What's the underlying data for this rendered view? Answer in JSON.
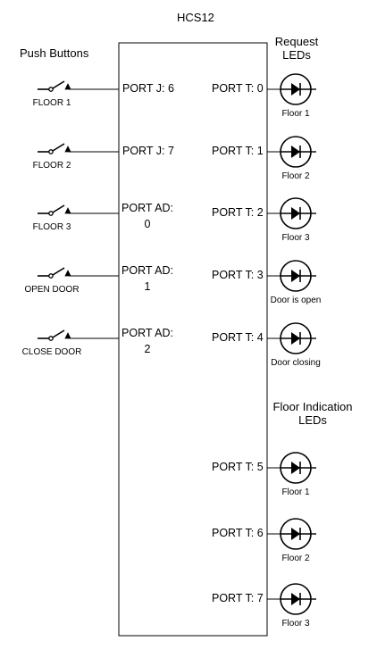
{
  "mcu": {
    "title": "HCS12"
  },
  "headers": {
    "push_buttons": "Push Buttons",
    "request_leds": [
      "Request",
      "LEDs"
    ],
    "floor_leds": [
      "Floor Indication",
      "LEDs"
    ]
  },
  "buttons": [
    {
      "label": "FLOOR 1",
      "port": [
        "PORT J: 6"
      ]
    },
    {
      "label": "FLOOR 2",
      "port": [
        "PORT J: 7"
      ]
    },
    {
      "label": "FLOOR 3",
      "port": [
        "PORT AD:",
        "0"
      ]
    },
    {
      "label": "OPEN DOOR",
      "port": [
        "PORT AD:",
        "1"
      ]
    },
    {
      "label": "CLOSE DOOR",
      "port": [
        "PORT AD:",
        "2"
      ]
    }
  ],
  "request_leds": [
    {
      "port": "PORT T: 0",
      "label": "Floor 1"
    },
    {
      "port": "PORT T: 1",
      "label": "Floor 2"
    },
    {
      "port": "PORT T: 2",
      "label": "Floor 3"
    },
    {
      "port": "PORT T: 3",
      "label": "Door is open"
    },
    {
      "port": "PORT T: 4",
      "label": "Door closing"
    }
  ],
  "floor_leds": [
    {
      "port": "PORT T: 5",
      "label": "Floor 1"
    },
    {
      "port": "PORT T: 6",
      "label": "Floor 2"
    },
    {
      "port": "PORT T: 7",
      "label": "Floor 3"
    }
  ]
}
